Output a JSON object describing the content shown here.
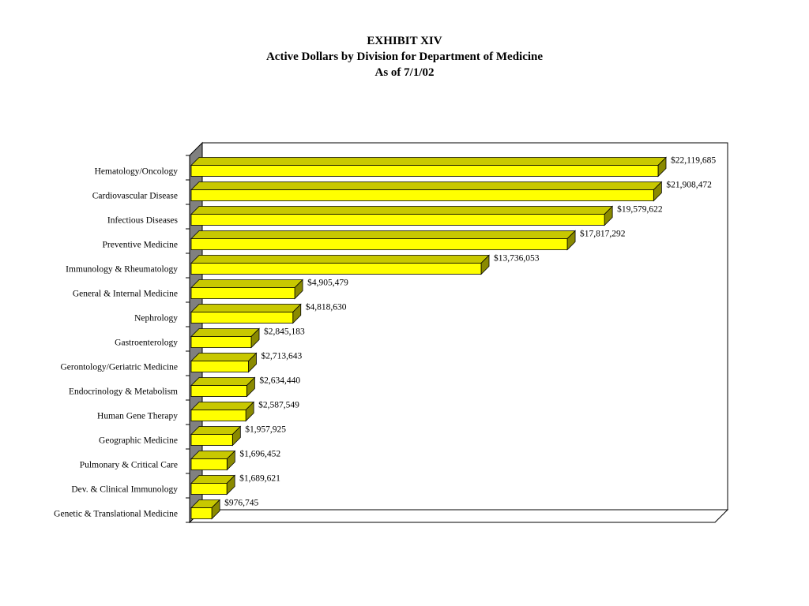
{
  "chart_data": {
    "type": "bar",
    "orientation": "horizontal",
    "style": "3d",
    "title": "EXHIBIT XIV",
    "subtitle": "Active Dollars by Division for Department of Medicine",
    "date_line": "As of 7/1/02",
    "xlabel": "",
    "ylabel": "",
    "xlim": [
      0,
      22119685
    ],
    "grid": false,
    "legend": "none",
    "colors": {
      "bar_front": "#ffff00",
      "bar_top": "#c8c800",
      "bar_side": "#8a8a00",
      "wall": "#808080"
    },
    "categories": [
      "Hematology/Oncology",
      "Cardiovascular Disease",
      "Infectious Diseases",
      "Preventive Medicine",
      "Immunology & Rheumatology",
      "General & Internal Medicine",
      "Nephrology",
      "Gastroenterology",
      "Gerontology/Geriatric Medicine",
      "Endocrinology & Metabolism",
      "Human Gene Therapy",
      "Geographic Medicine",
      "Pulmonary & Critical Care",
      "Dev. & Clinical Immunology",
      "Genetic & Translational Medicine"
    ],
    "values": [
      22119685,
      21908472,
      19579622,
      17817292,
      13736053,
      4905479,
      4818630,
      2845183,
      2713643,
      2634440,
      2587549,
      1957925,
      1696452,
      1689621,
      976745
    ],
    "data_labels": [
      "$22,119,685",
      "$21,908,472",
      "$19,579,622",
      "$17,817,292",
      "$13,736,053",
      "$4,905,479",
      "$4,818,630",
      "$2,845,183",
      "$2,713,643",
      "$2,634,440",
      "$2,587,549",
      "$1,957,925",
      "$1,696,452",
      "$1,689,621",
      "$976,745"
    ]
  }
}
